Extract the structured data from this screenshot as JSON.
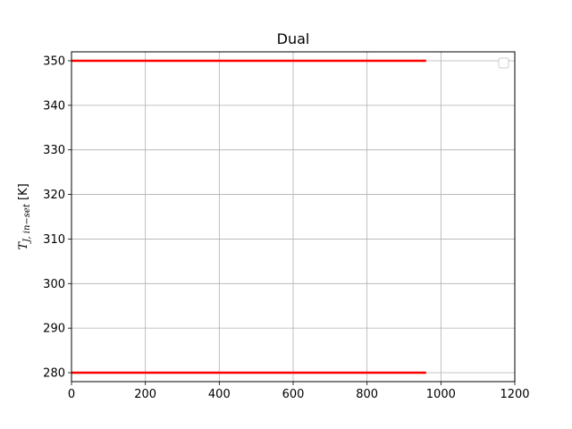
{
  "chart_data": {
    "type": "line",
    "title": "Dual",
    "xlabel": "",
    "ylabel": "T_{J,in-set} [K]",
    "ylabel_main": "T",
    "ylabel_sub": "J, in−set",
    "ylabel_unit": " [K]",
    "xlim": [
      0,
      1200
    ],
    "ylim": [
      278,
      352
    ],
    "xticks": [
      0,
      200,
      400,
      600,
      800,
      1000,
      1200
    ],
    "yticks": [
      280,
      290,
      300,
      310,
      320,
      330,
      340,
      350
    ],
    "grid": true,
    "legend": "top-right",
    "series": [
      {
        "color": "#ff0000",
        "x": [
          0,
          960
        ],
        "y": [
          350,
          350
        ]
      },
      {
        "color": "#ff0000",
        "x": [
          0,
          960
        ],
        "y": [
          280,
          280
        ]
      }
    ]
  }
}
